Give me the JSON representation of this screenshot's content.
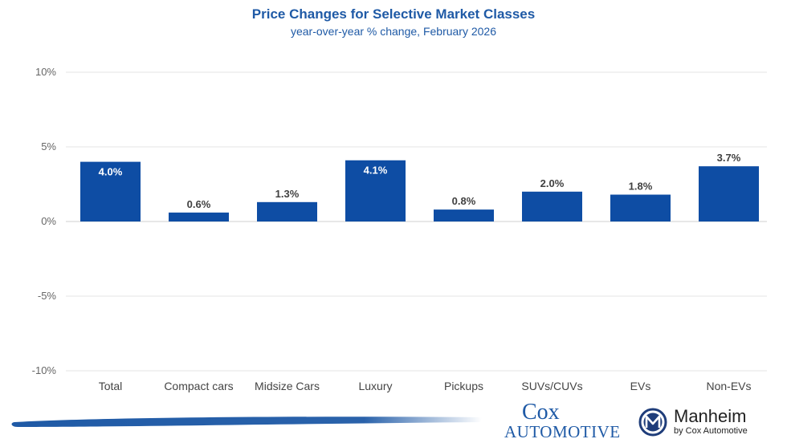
{
  "chart_data": {
    "type": "bar",
    "title": "Price Changes for Selective Market Classes",
    "subtitle": "year-over-year % change, February 2026",
    "categories": [
      "Total",
      "Compact cars",
      "Midsize Cars",
      "Luxury",
      "Pickups",
      "SUVs/CUVs",
      "EVs",
      "Non-EVs"
    ],
    "values": [
      4.0,
      0.6,
      1.3,
      4.1,
      0.8,
      2.0,
      1.8,
      3.7
    ],
    "data_labels": [
      "4.0%",
      "0.6%",
      "1.3%",
      "4.1%",
      "0.8%",
      "2.0%",
      "1.8%",
      "3.7%"
    ],
    "yticks": [
      10,
      5,
      0,
      -5,
      -10
    ],
    "ytick_labels": [
      "10%",
      "5%",
      "0%",
      "-5%",
      "-10%"
    ],
    "ylim": [
      -10,
      10
    ],
    "grid": true,
    "bar_color": "#0e4da4"
  },
  "footer": {
    "cox_line1": "Cox",
    "cox_line2": "AUTOMOTIVE",
    "manheim_name": "Manheim",
    "manheim_tagline": "by Cox Automotive"
  }
}
